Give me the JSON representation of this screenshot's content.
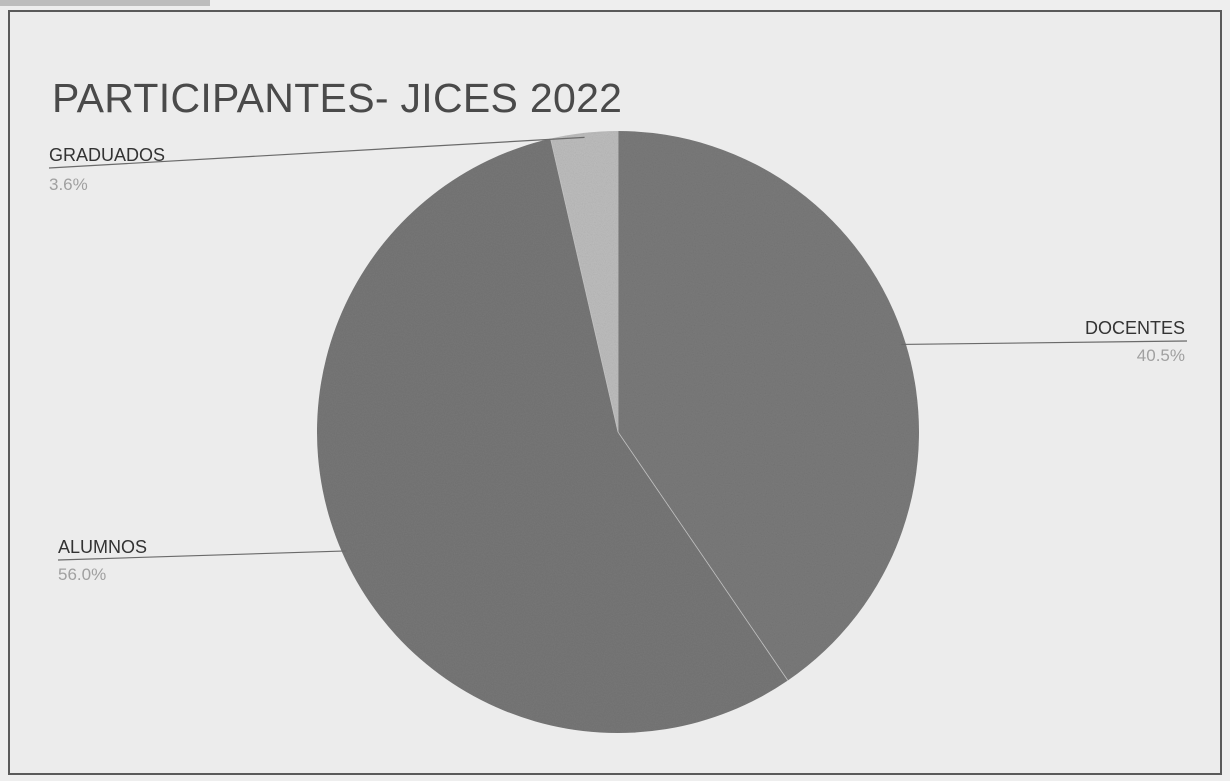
{
  "chart_data": {
    "type": "pie",
    "title": "PARTICIPANTES- JICES 2022",
    "slices": [
      {
        "name": "DOCENTES",
        "label": "40.5%",
        "value": 40.5,
        "color": "#7a7a7a"
      },
      {
        "name": "ALUMNOS",
        "label": "56.0%",
        "value": 56.0,
        "color": "#777777"
      },
      {
        "name": "GRADUADOS",
        "label": "3.6%",
        "value": 3.6,
        "color": "#bdbdbd"
      }
    ],
    "legend": "none"
  }
}
